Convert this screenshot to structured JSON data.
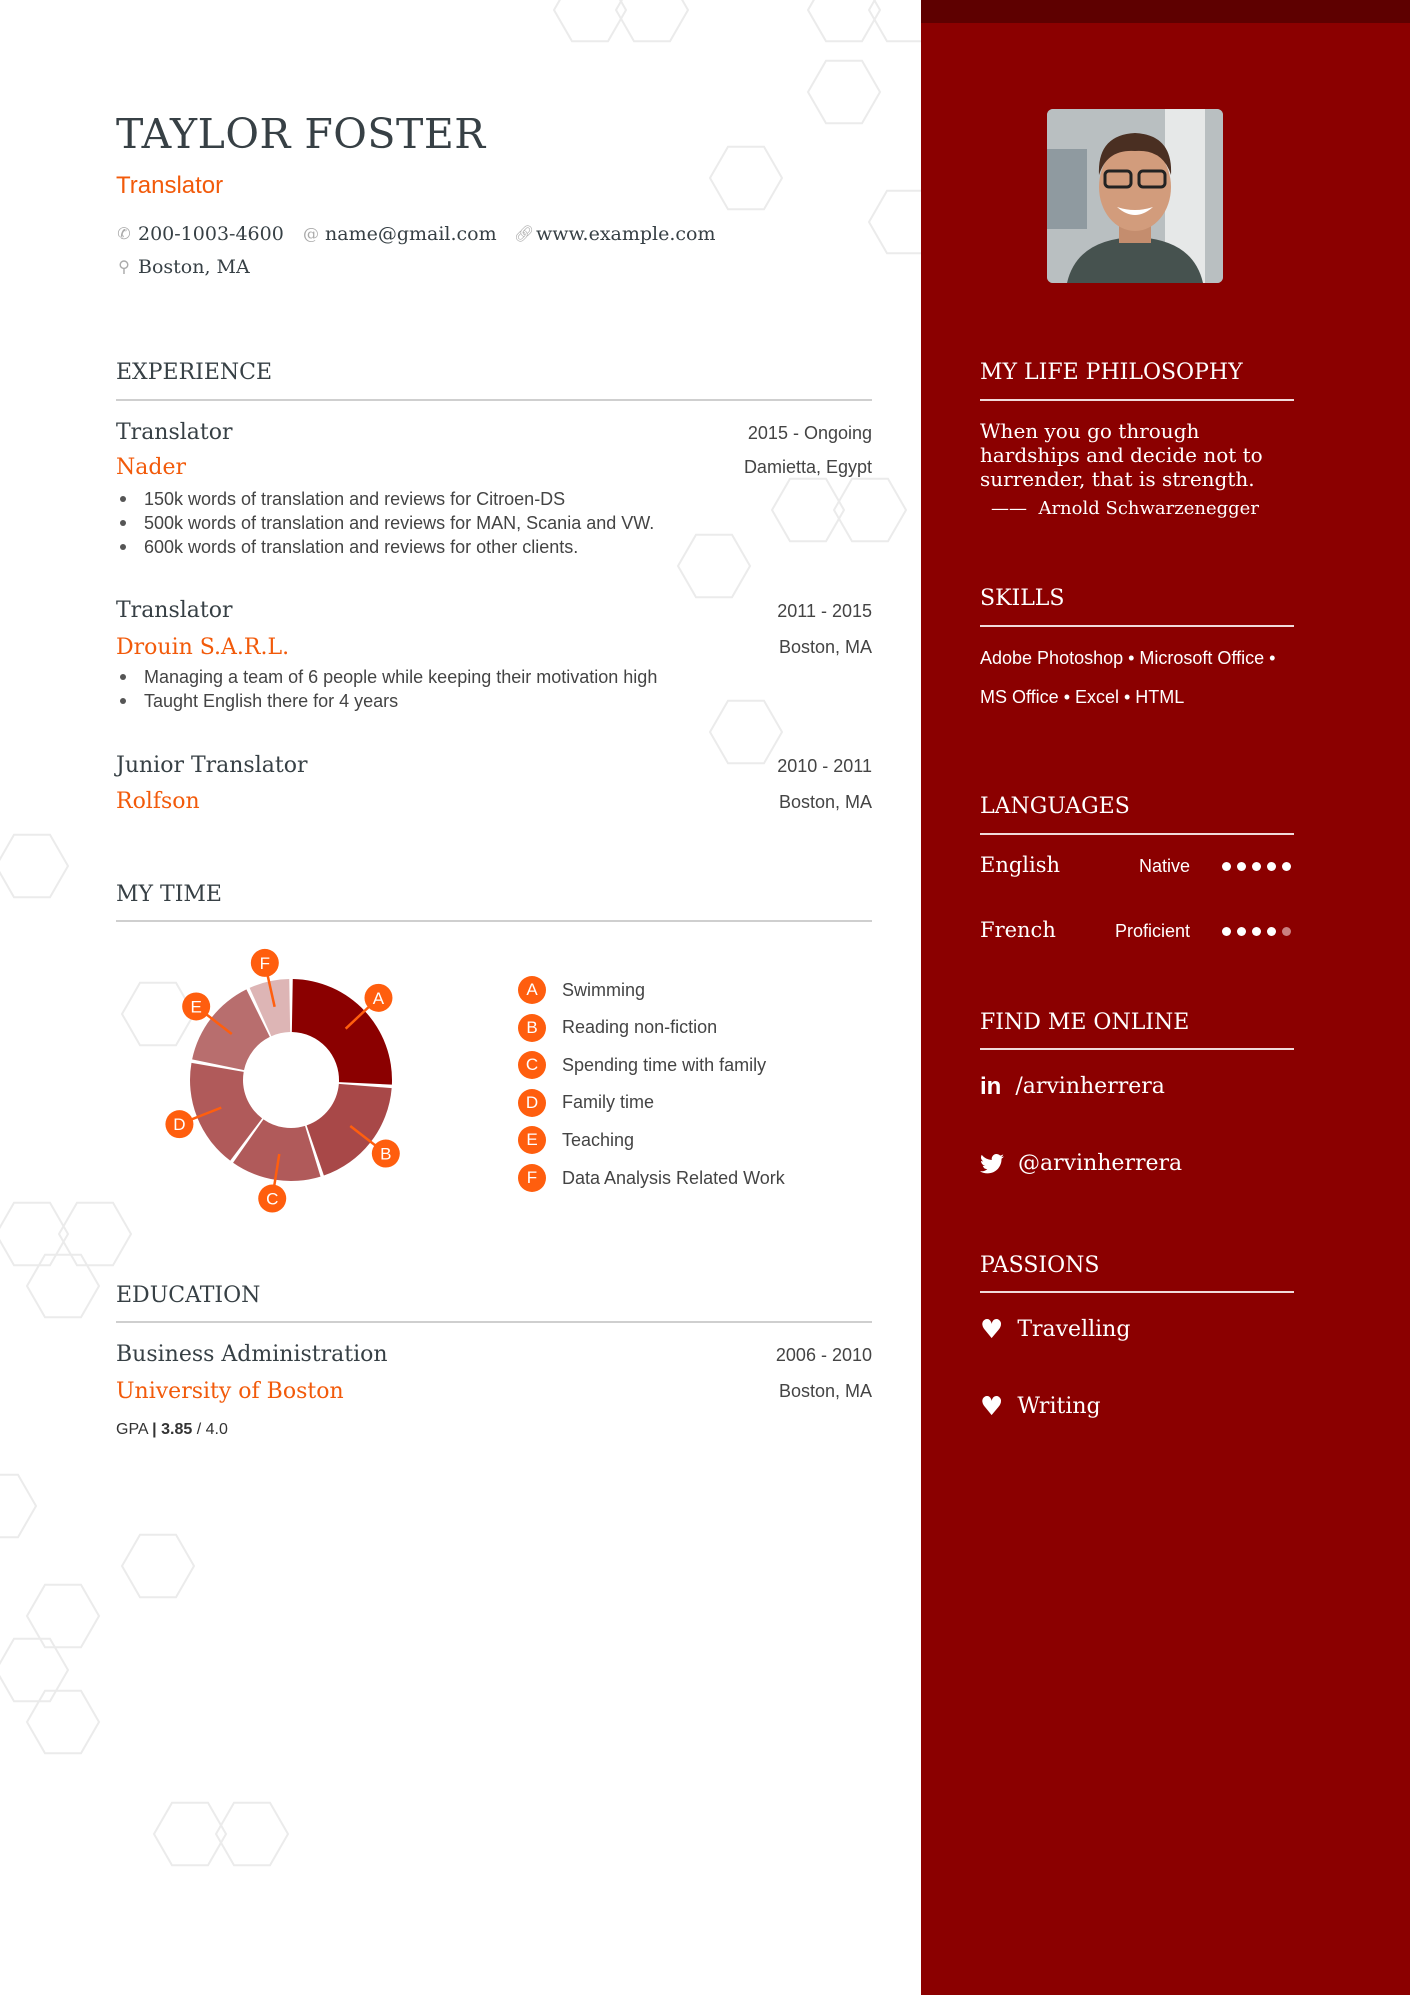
{
  "header": {
    "name": "TAYLOR FOSTER",
    "role": "Translator",
    "phone": "200-1003-4600",
    "email": "name@gmail.com",
    "website": "www.example.com",
    "location": "Boston, MA"
  },
  "experience": {
    "title": "EXPERIENCE",
    "jobs": [
      {
        "title": "Translator",
        "company": "Nader",
        "dates": "2015 - Ongoing",
        "location": "Damietta, Egypt",
        "bullets": [
          "150k words of translation and reviews for Citroen-DS",
          "500k words of translation and reviews for MAN, Scania and VW.",
          "600k words of translation and reviews for other clients."
        ]
      },
      {
        "title": "Translator",
        "company": "Drouin S.A.R.L.",
        "dates": "2011 - 2015",
        "location": "Boston, MA",
        "bullets": [
          "Managing a team of 6 people while keeping their motivation high",
          "Taught English there for 4 years"
        ]
      },
      {
        "title": "Junior Translator",
        "company": "Rolfson",
        "dates": "2010 - 2011",
        "location": "Boston, MA",
        "bullets": []
      }
    ]
  },
  "my_time": {
    "title": "MY TIME"
  },
  "chart_data": {
    "type": "pie",
    "variant": "donut",
    "categories": [
      "A",
      "B",
      "C",
      "D",
      "E",
      "F"
    ],
    "series": [
      {
        "values": [
          26,
          19,
          15,
          18,
          15,
          7
        ]
      }
    ],
    "legend": [
      "Swimming",
      "Reading non-fiction",
      "Spending time with family",
      "Family time",
      "Teaching",
      "Data Analysis Related Work"
    ],
    "colors": [
      "#8b0000",
      "#a84848",
      "#b05a5a",
      "#b05a5a",
      "#b86e6e",
      "#ddb5b5"
    ],
    "legend_placement": "right"
  },
  "education": {
    "title": "EDUCATION",
    "degree": "Business Administration",
    "school": "University of Boston",
    "dates": "2006 - 2010",
    "location": "Boston, MA",
    "gpa_label": "GPA",
    "gpa_sep": "|",
    "gpa": "3.85",
    "gpa_max": "/ 4.0"
  },
  "sidebar": {
    "philosophy": {
      "title": "MY LIFE PHILOSOPHY",
      "quote": "When you go through hardships and decide not to surrender, that is strength.",
      "author": "Arnold Schwarzenegger"
    },
    "skills": {
      "title": "SKILLS",
      "line1": "Adobe Photoshop • Microsoft Office •",
      "line2": "MS Office • Excel • HTML"
    },
    "languages": {
      "title": "LANGUAGES",
      "items": [
        {
          "name": "English",
          "level": "Native",
          "rating": 5,
          "max": 5
        },
        {
          "name": "French",
          "level": "Proficient",
          "rating": 4,
          "max": 5
        }
      ]
    },
    "online": {
      "title": "FIND ME ONLINE",
      "linkedin": "/arvinherrera",
      "twitter": "@arvinherrera"
    },
    "passions": {
      "title": "PASSIONS",
      "items": [
        "Travelling",
        "Writing"
      ]
    }
  },
  "colors": {
    "accent": "#f25a0a",
    "sidebar": "#8b0000",
    "badge": "#ff5e0e"
  }
}
